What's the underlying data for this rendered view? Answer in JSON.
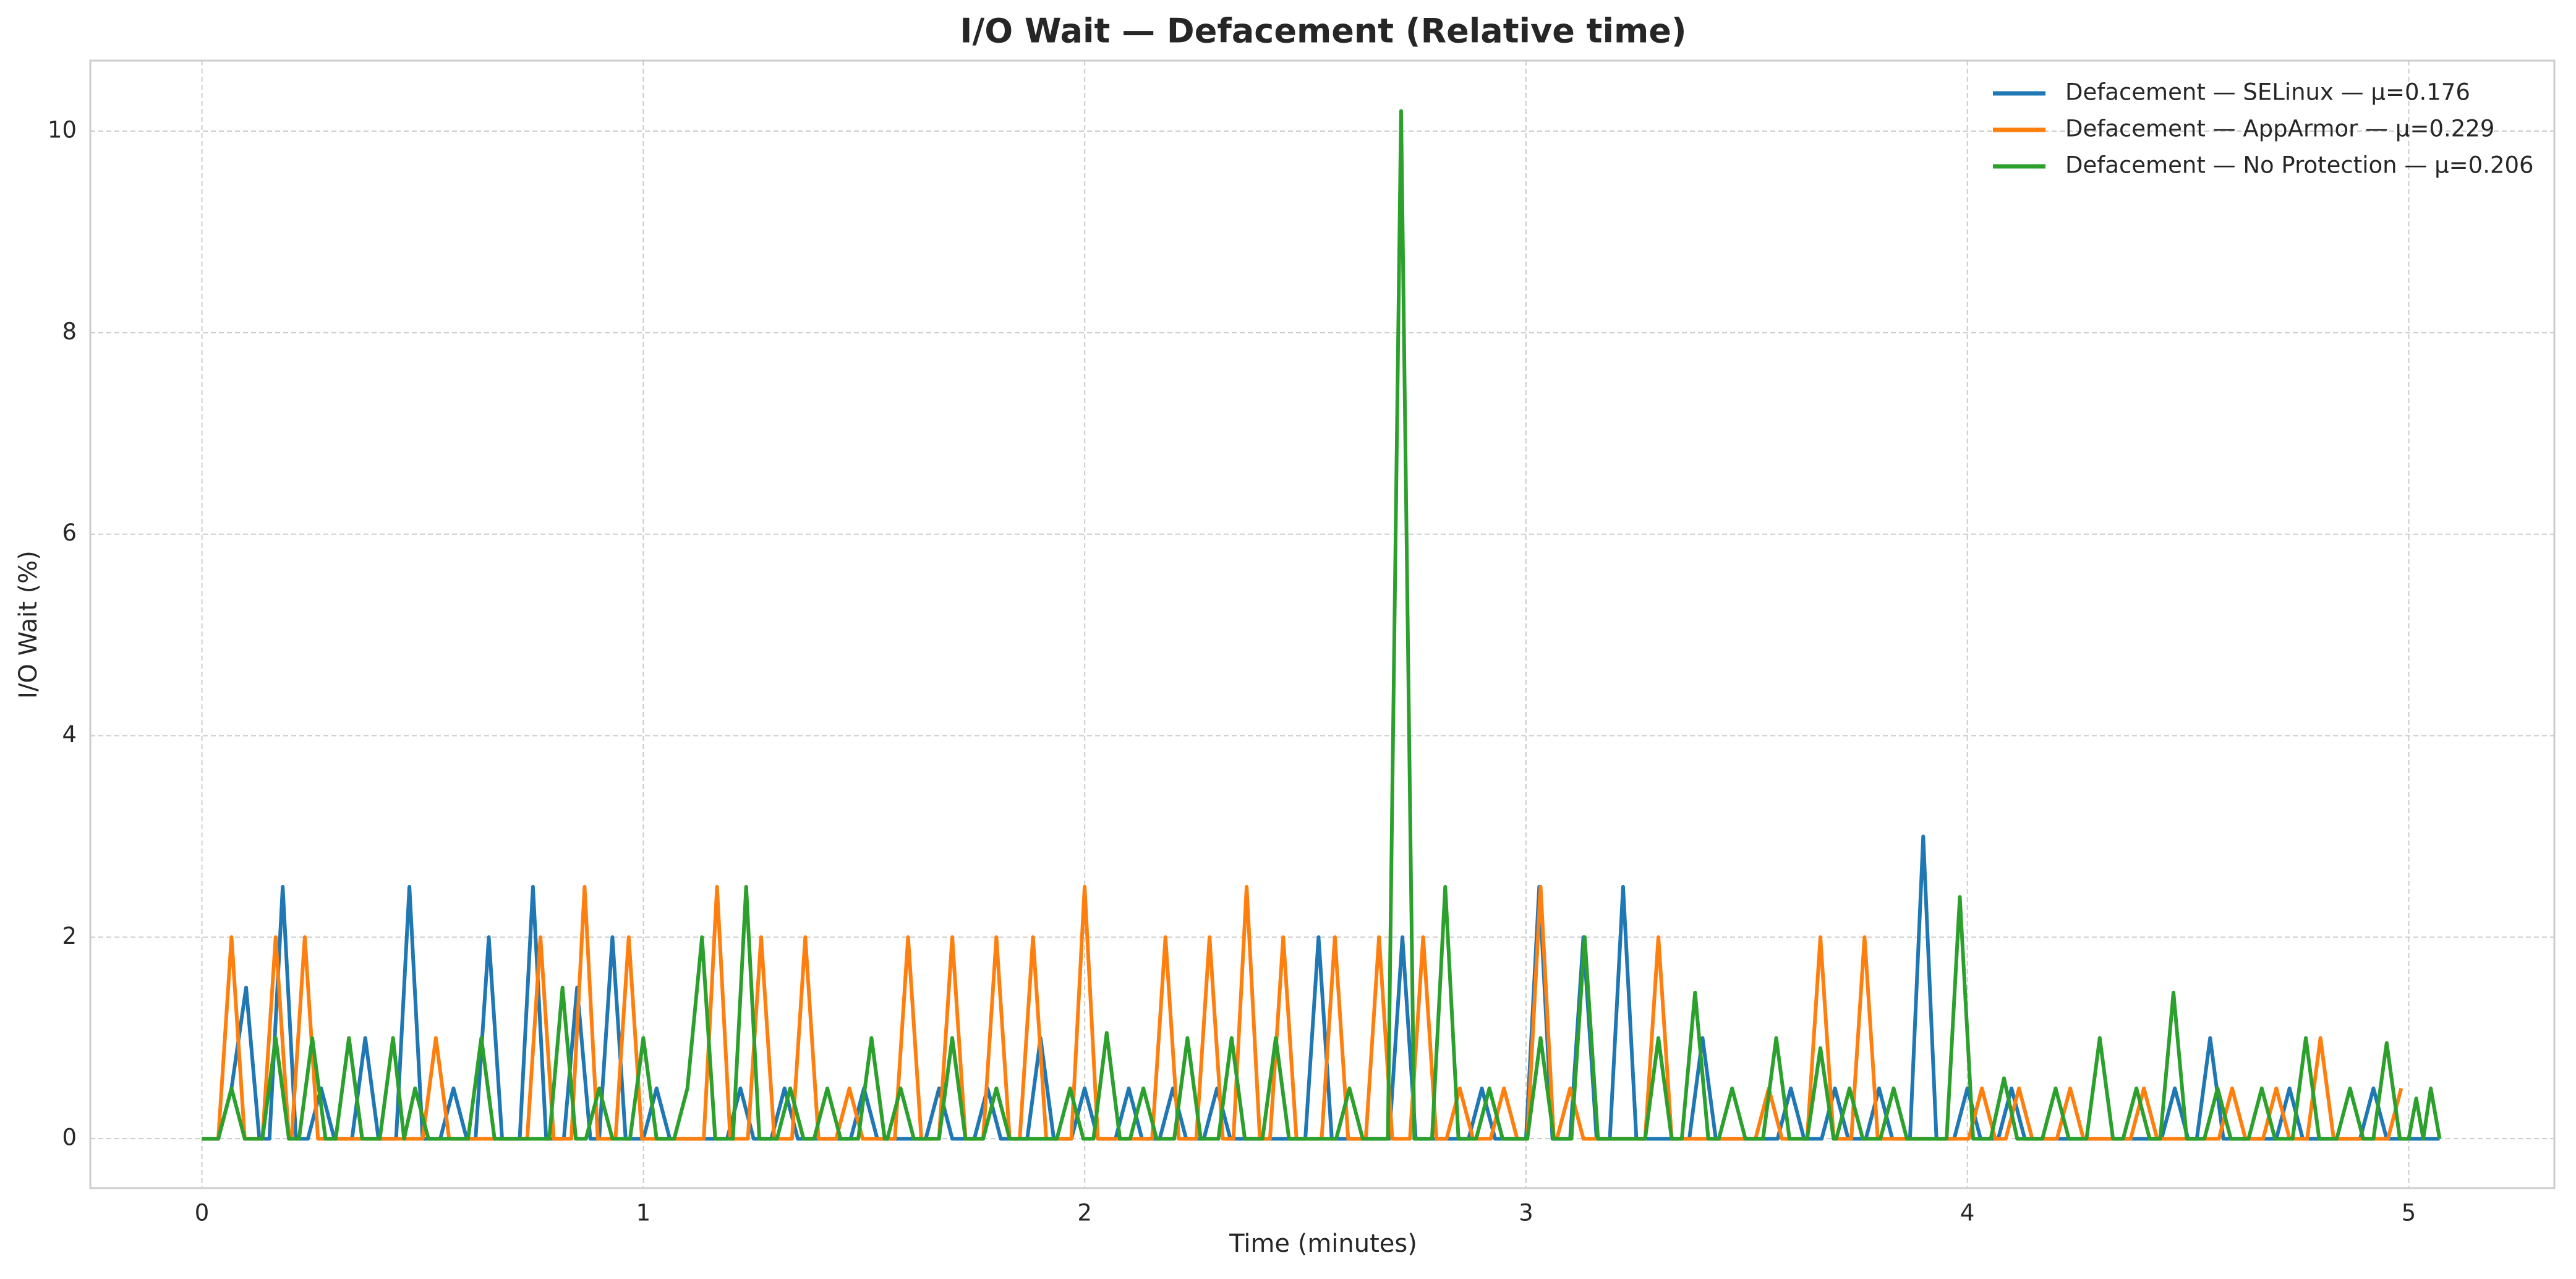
{
  "chart_data": {
    "type": "line",
    "title": "I/O Wait — Defacement (Relative time)",
    "x_label": "Time (minutes)",
    "y_label": "I/O Wait (%)",
    "xlim": [
      -0.253,
      5.33
    ],
    "ylim": [
      -0.49,
      10.7
    ],
    "xticks": [
      0,
      1,
      2,
      3,
      4,
      5
    ],
    "yticks": [
      0,
      2,
      4,
      6,
      8,
      10
    ],
    "grid": true,
    "legend": "upper-right",
    "series": [
      {
        "name": "Defacement — SELinux — μ=0.176",
        "color": "#1f77b4",
        "x": [
          0,
          0.037,
          0.067,
          0.1,
          0.13,
          0.153,
          0.183,
          0.213,
          0.24,
          0.27,
          0.3,
          0.34,
          0.37,
          0.4,
          0.44,
          0.47,
          0.5,
          0.54,
          0.57,
          0.6,
          0.62,
          0.65,
          0.68,
          0.72,
          0.75,
          0.78,
          0.82,
          0.85,
          0.88,
          0.9,
          0.93,
          0.96,
          1.0,
          1.03,
          1.06,
          1.19,
          1.22,
          1.25,
          1.29,
          1.32,
          1.35,
          1.47,
          1.5,
          1.53,
          1.64,
          1.67,
          1.7,
          1.75,
          1.78,
          1.81,
          1.87,
          1.9,
          1.93,
          1.97,
          2.0,
          2.03,
          2.07,
          2.1,
          2.13,
          2.17,
          2.2,
          2.23,
          2.27,
          2.3,
          2.33,
          2.5,
          2.53,
          2.56,
          2.69,
          2.72,
          2.75,
          2.87,
          2.9,
          2.93,
          3.0,
          3.03,
          3.06,
          3.1,
          3.13,
          3.16,
          3.19,
          3.22,
          3.25,
          3.37,
          3.4,
          3.43,
          3.57,
          3.6,
          3.63,
          3.67,
          3.7,
          3.73,
          3.77,
          3.8,
          3.83,
          3.87,
          3.9,
          3.93,
          3.97,
          4.0,
          4.03,
          4.07,
          4.1,
          4.13,
          4.44,
          4.47,
          4.5,
          4.52,
          4.55,
          4.58,
          4.7,
          4.73,
          4.76,
          4.89,
          4.92,
          4.95,
          5.07
        ],
        "values": [
          0,
          0,
          0.5,
          1.5,
          0,
          0,
          2.5,
          0,
          0,
          0.5,
          0,
          0,
          1,
          0,
          0,
          2.5,
          0,
          0,
          0.5,
          0,
          0,
          2,
          0,
          0,
          2.5,
          0,
          0,
          1.5,
          0,
          0,
          2,
          0,
          0,
          0.5,
          0,
          0,
          0.5,
          0,
          0,
          0.5,
          0,
          0,
          0.5,
          0,
          0,
          0.5,
          0,
          0,
          0.5,
          0,
          0,
          1,
          0,
          0,
          0.5,
          0,
          0,
          0.5,
          0,
          0,
          0.5,
          0,
          0,
          0.5,
          0,
          0,
          2,
          0,
          0,
          2,
          0,
          0,
          0.5,
          0,
          0,
          2.5,
          0,
          0,
          2,
          0,
          0,
          2.5,
          0,
          0,
          1,
          0,
          0,
          0.5,
          0,
          0,
          0.5,
          0,
          0,
          0.5,
          0,
          0,
          3,
          0,
          0,
          0.5,
          0,
          0,
          0.5,
          0,
          0,
          0.5,
          0,
          0,
          1,
          0,
          0,
          0.5,
          0,
          0,
          0.5,
          0,
          0
        ]
      },
      {
        "name": "Defacement — AppArmor — μ=0.229",
        "color": "#ff7f0e",
        "x": [
          0,
          0.037,
          0.067,
          0.097,
          0.137,
          0.167,
          0.197,
          0.203,
          0.233,
          0.263,
          0.5,
          0.53,
          0.56,
          0.737,
          0.767,
          0.797,
          0.837,
          0.867,
          0.897,
          0.937,
          0.967,
          0.997,
          1.137,
          1.167,
          1.197,
          1.237,
          1.267,
          1.297,
          1.337,
          1.367,
          1.397,
          1.437,
          1.467,
          1.497,
          1.57,
          1.6,
          1.63,
          1.67,
          1.7,
          1.73,
          1.77,
          1.8,
          1.83,
          1.853,
          1.883,
          1.913,
          1.97,
          2.0,
          2.03,
          2.153,
          2.183,
          2.213,
          2.253,
          2.283,
          2.313,
          2.337,
          2.367,
          2.397,
          2.42,
          2.45,
          2.48,
          2.537,
          2.567,
          2.597,
          2.637,
          2.667,
          2.697,
          2.737,
          2.767,
          2.797,
          2.82,
          2.85,
          2.88,
          2.92,
          2.95,
          2.98,
          3.003,
          3.033,
          3.063,
          3.07,
          3.1,
          3.13,
          3.27,
          3.3,
          3.33,
          3.52,
          3.55,
          3.58,
          3.637,
          3.667,
          3.697,
          3.737,
          3.767,
          3.797,
          4.003,
          4.033,
          4.063,
          4.087,
          4.117,
          4.147,
          4.203,
          4.233,
          4.263,
          4.37,
          4.4,
          4.43,
          4.57,
          4.6,
          4.63,
          4.67,
          4.7,
          4.73,
          4.77,
          4.8,
          4.83,
          4.953,
          4.983
        ],
        "values": [
          0,
          0,
          2,
          0,
          0,
          2,
          0,
          0,
          2,
          0,
          0,
          1,
          0,
          0,
          2,
          0,
          0,
          2.5,
          0,
          0,
          2,
          0,
          0,
          2.5,
          0,
          0,
          2,
          0,
          0,
          2,
          0,
          0,
          0.5,
          0,
          0,
          2,
          0,
          0,
          2,
          0,
          0,
          2,
          0,
          0,
          2,
          0,
          0,
          2.5,
          0,
          0,
          2,
          0,
          0,
          2,
          0,
          0,
          2.5,
          0,
          0,
          2,
          0,
          0,
          2,
          0,
          0,
          2,
          0,
          0,
          2,
          0,
          0,
          0.5,
          0,
          0,
          0.5,
          0,
          0,
          2.5,
          0,
          0,
          0.5,
          0,
          0,
          2,
          0,
          0,
          0.5,
          0,
          0,
          2,
          0,
          0,
          2,
          0,
          0,
          0.5,
          0,
          0,
          0.5,
          0,
          0,
          0.5,
          0,
          0,
          0.5,
          0,
          0,
          0.5,
          0,
          0,
          0.5,
          0,
          0,
          1,
          0,
          0,
          0.5
        ]
      },
      {
        "name": "Defacement — No Protection — μ=0.206",
        "color": "#2ca02c",
        "x": [
          0,
          0.037,
          0.067,
          0.097,
          0.137,
          0.167,
          0.197,
          0.22,
          0.25,
          0.28,
          0.303,
          0.333,
          0.363,
          0.403,
          0.433,
          0.458,
          0.483,
          0.513,
          0.603,
          0.633,
          0.663,
          0.787,
          0.817,
          0.847,
          0.87,
          0.9,
          0.93,
          0.97,
          1.0,
          1.03,
          1.07,
          1.1,
          1.133,
          1.163,
          1.203,
          1.233,
          1.263,
          1.303,
          1.333,
          1.363,
          1.387,
          1.417,
          1.447,
          1.487,
          1.517,
          1.547,
          1.553,
          1.583,
          1.613,
          1.67,
          1.7,
          1.73,
          1.77,
          1.8,
          1.83,
          1.937,
          1.967,
          1.997,
          2.02,
          2.05,
          2.08,
          2.103,
          2.133,
          2.163,
          2.203,
          2.233,
          2.263,
          2.303,
          2.333,
          2.363,
          2.403,
          2.433,
          2.463,
          2.57,
          2.6,
          2.63,
          2.687,
          2.717,
          2.747,
          2.787,
          2.817,
          2.847,
          2.887,
          2.917,
          2.947,
          3.003,
          3.033,
          3.063,
          3.103,
          3.133,
          3.163,
          3.27,
          3.3,
          3.33,
          3.353,
          3.383,
          3.413,
          3.437,
          3.467,
          3.497,
          3.537,
          3.567,
          3.597,
          3.637,
          3.667,
          3.697,
          3.703,
          3.733,
          3.763,
          3.803,
          3.833,
          3.863,
          3.953,
          3.983,
          4.013,
          4.053,
          4.083,
          4.113,
          4.17,
          4.2,
          4.23,
          4.27,
          4.3,
          4.33,
          4.353,
          4.383,
          4.413,
          4.437,
          4.467,
          4.497,
          4.537,
          4.567,
          4.597,
          4.637,
          4.667,
          4.697,
          4.737,
          4.767,
          4.797,
          4.837,
          4.867,
          4.897,
          4.92,
          4.95,
          4.98,
          5.0,
          5.017,
          5.033,
          5.05,
          5.07
        ],
        "values": [
          0,
          0,
          0.5,
          0,
          0,
          1,
          0,
          0,
          1,
          0,
          0,
          1,
          0,
          0,
          1,
          0,
          0.5,
          0,
          0,
          1,
          0,
          0,
          1.5,
          0,
          0,
          0.5,
          0,
          0,
          1,
          0,
          0,
          0.5,
          2,
          0,
          0,
          2.5,
          0,
          0,
          0.5,
          0,
          0,
          0.5,
          0,
          0,
          1,
          0,
          0,
          0.5,
          0,
          0,
          1,
          0,
          0,
          0.5,
          0,
          0,
          0.5,
          0,
          0,
          1.05,
          0,
          0,
          0.5,
          0,
          0,
          1,
          0,
          0,
          1,
          0,
          0,
          1,
          0,
          0,
          0.5,
          0,
          0,
          10.2,
          0,
          0,
          2.5,
          0,
          0,
          0.5,
          0,
          0,
          1,
          0,
          0,
          2,
          0,
          0,
          1,
          0,
          0,
          1.45,
          0,
          0,
          0.5,
          0,
          0,
          1,
          0,
          0,
          0.9,
          0,
          0,
          0.5,
          0,
          0,
          0.5,
          0,
          0,
          2.4,
          0,
          0,
          0.6,
          0,
          0,
          0.5,
          0,
          0,
          1,
          0,
          0,
          0.5,
          0,
          0,
          1.45,
          0,
          0,
          0.5,
          0,
          0,
          0.5,
          0,
          0,
          1,
          0,
          0,
          0.5,
          0,
          0,
          0.95,
          0,
          0,
          0.4,
          0,
          0.5,
          0
        ]
      }
    ]
  }
}
